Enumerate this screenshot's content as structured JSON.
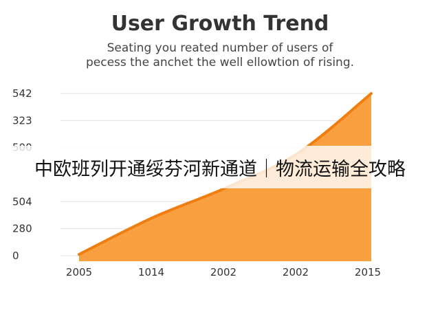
{
  "chart_data": {
    "type": "area",
    "title": "User Growth Trend",
    "subtitle_lines": [
      "Seating you reated number of users of",
      "pecess the anchet the well ellowtion of rising."
    ],
    "x_tick_labels": [
      "2005",
      "1014",
      "2002",
      "2002",
      "2015"
    ],
    "y_tick_labels": [
      "0",
      "280",
      "504",
      "",
      "500",
      "323",
      "542"
    ],
    "y_levels": [
      0,
      1,
      2,
      3,
      4,
      5,
      6
    ],
    "series": [
      {
        "x": [
          0,
          0.25,
          0.5,
          0.75,
          1
        ],
        "y": [
          0.05,
          1.4,
          2.5,
          3.8,
          6.0
        ]
      }
    ],
    "grid": true,
    "colors": {
      "fill": "#f8a040",
      "line": "#ef7d0f"
    }
  },
  "overlay_text": "中欧班列开通绥芬河新通道｜物流运输全攻略"
}
